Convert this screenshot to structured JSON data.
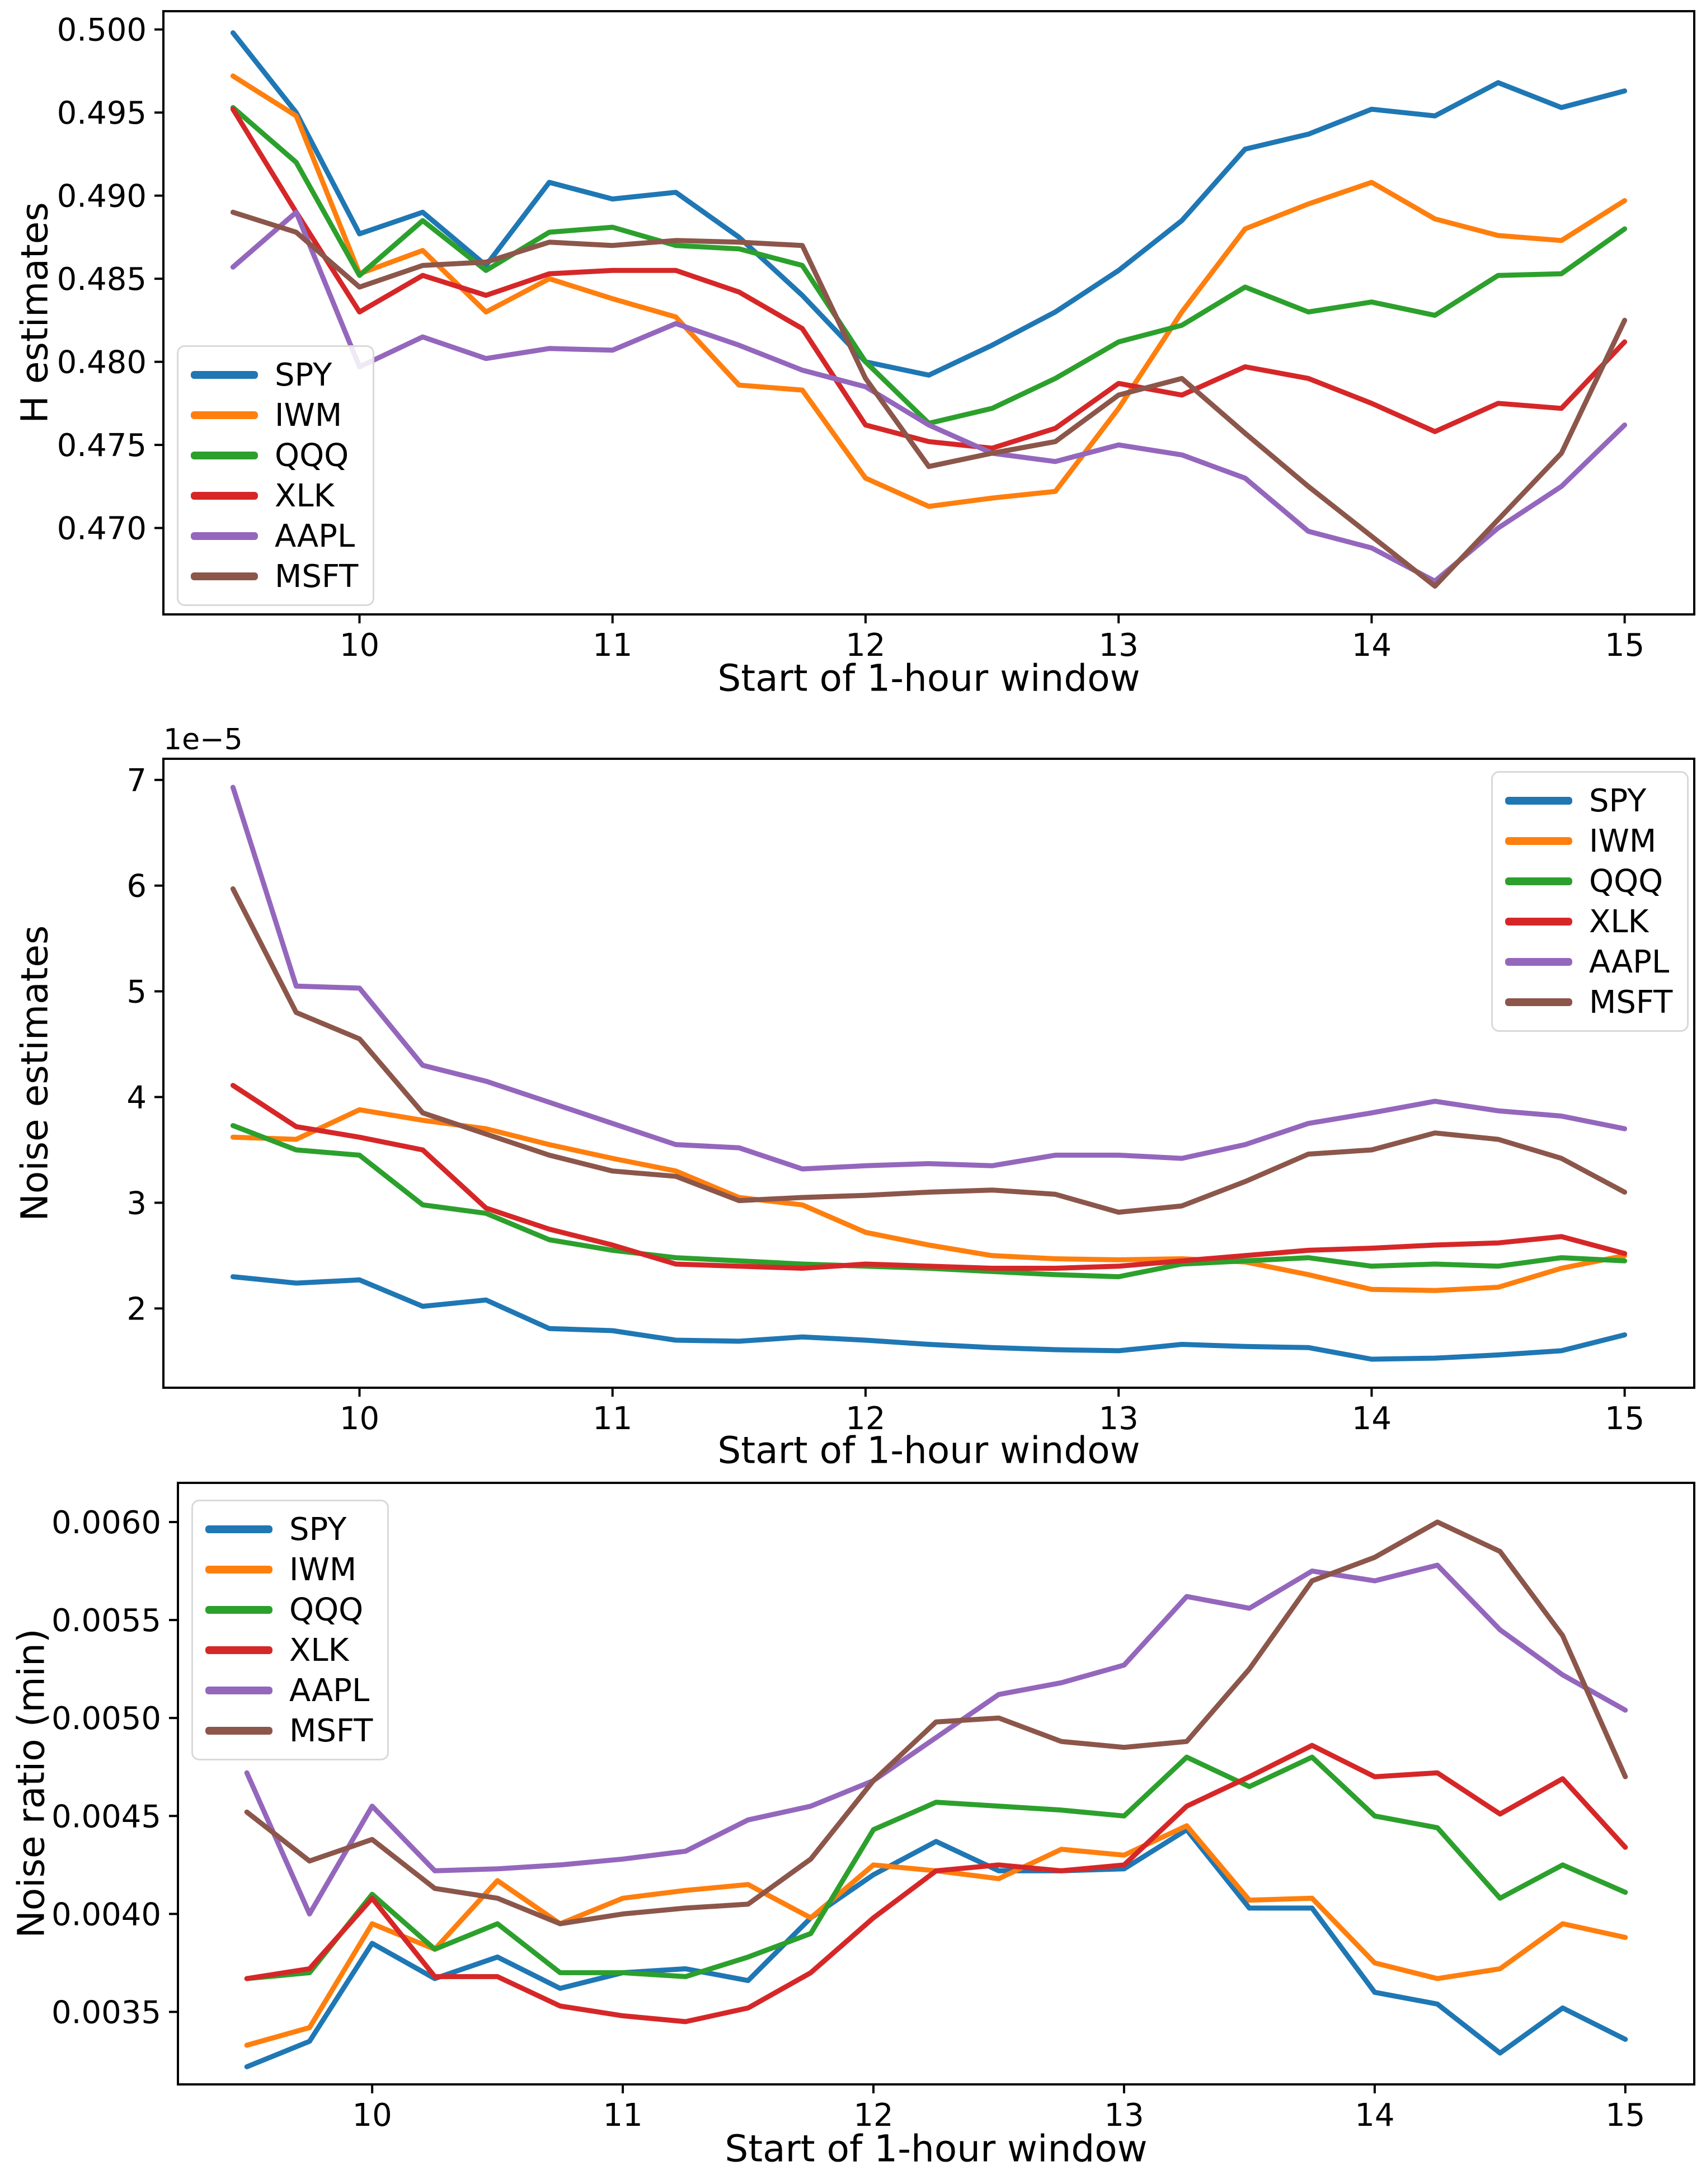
{
  "figure": {
    "background": "#ffffff",
    "text_color": "#000000",
    "series_colors": {
      "SPY": "#1f77b4",
      "IWM": "#ff7f0e",
      "QQQ": "#2ca02c",
      "XLK": "#d62728",
      "AAPL": "#9467bd",
      "MSFT": "#8c564b"
    }
  },
  "chart_data": [
    {
      "type": "line",
      "title": "",
      "xlabel": "Start of 1-hour window",
      "ylabel": "H estimates",
      "legend_position": "lower left inside",
      "grid": false,
      "xlim": [
        9.225,
        15.275
      ],
      "ylim": [
        0.4648,
        0.5011
      ],
      "xticks": [
        10,
        11,
        12,
        13,
        14,
        15
      ],
      "xticklabels": [
        "10",
        "11",
        "12",
        "13",
        "14",
        "15"
      ],
      "yticks": [
        0.5,
        0.495,
        0.49,
        0.485,
        0.48,
        0.475,
        0.47
      ],
      "yticklabels": [
        "0.500",
        "0.495",
        "0.490",
        "0.485",
        "0.480",
        "0.475",
        "0.470"
      ],
      "x": [
        9.5,
        9.75,
        10.0,
        10.25,
        10.5,
        10.75,
        11.0,
        11.25,
        11.5,
        11.75,
        12.0,
        12.25,
        12.5,
        12.75,
        13.0,
        13.25,
        13.5,
        13.75,
        14.0,
        14.25,
        14.5,
        14.75,
        15.0
      ],
      "series": [
        {
          "name": "SPY",
          "color": "#1f77b4",
          "values": [
            0.4998,
            0.495,
            0.4877,
            0.489,
            0.4858,
            0.4908,
            0.4898,
            0.4902,
            0.4875,
            0.484,
            0.48,
            0.4792,
            0.481,
            0.483,
            0.4855,
            0.4885,
            0.4928,
            0.4937,
            0.4952,
            0.4948,
            0.4968,
            0.4953,
            0.4963
          ]
        },
        {
          "name": "IWM",
          "color": "#ff7f0e",
          "values": [
            0.4972,
            0.4948,
            0.4853,
            0.4867,
            0.483,
            0.485,
            0.4838,
            0.4827,
            0.4786,
            0.4783,
            0.473,
            0.4713,
            0.4718,
            0.4722,
            0.4772,
            0.483,
            0.488,
            0.4895,
            0.4908,
            0.4886,
            0.4876,
            0.4873,
            0.4897
          ]
        },
        {
          "name": "QQQ",
          "color": "#2ca02c",
          "values": [
            0.4953,
            0.492,
            0.4852,
            0.4885,
            0.4855,
            0.4878,
            0.4881,
            0.487,
            0.4868,
            0.4858,
            0.48,
            0.4763,
            0.4772,
            0.479,
            0.4812,
            0.4822,
            0.4845,
            0.483,
            0.4836,
            0.4828,
            0.4852,
            0.4853,
            0.488
          ]
        },
        {
          "name": "XLK",
          "color": "#d62728",
          "values": [
            0.4952,
            0.489,
            0.483,
            0.4852,
            0.484,
            0.4853,
            0.4855,
            0.4855,
            0.4842,
            0.482,
            0.4762,
            0.4752,
            0.4748,
            0.476,
            0.4787,
            0.478,
            0.4797,
            0.479,
            0.4775,
            0.4758,
            0.4775,
            0.4772,
            0.4812
          ]
        },
        {
          "name": "AAPL",
          "color": "#9467bd",
          "values": [
            0.4857,
            0.489,
            0.4797,
            0.4815,
            0.4802,
            0.4808,
            0.4807,
            0.4823,
            0.481,
            0.4795,
            0.4785,
            0.4762,
            0.4745,
            0.474,
            0.475,
            0.4744,
            0.473,
            0.4698,
            0.4688,
            0.4668,
            0.47,
            0.4725,
            0.4762
          ]
        },
        {
          "name": "MSFT",
          "color": "#8c564b",
          "values": [
            0.489,
            0.4878,
            0.4845,
            0.4858,
            0.486,
            0.4872,
            0.487,
            0.4873,
            0.4872,
            0.487,
            0.479,
            0.4737,
            0.4745,
            0.4752,
            0.478,
            0.479,
            0.4757,
            0.4725,
            0.4695,
            0.4665,
            0.4705,
            0.4745,
            0.4825
          ]
        }
      ]
    },
    {
      "type": "line",
      "title": "",
      "xlabel": "Start of 1-hour window",
      "ylabel": "Noise estimates",
      "offset_text": "1e−5",
      "value_scale": "1e-5",
      "legend_position": "upper right inside",
      "grid": false,
      "xlim": [
        9.225,
        15.275
      ],
      "ylim": [
        1.25,
        7.2
      ],
      "xticks": [
        10,
        11,
        12,
        13,
        14,
        15
      ],
      "xticklabels": [
        "10",
        "11",
        "12",
        "13",
        "14",
        "15"
      ],
      "yticks": [
        7,
        6,
        5,
        4,
        3,
        2
      ],
      "yticklabels": [
        "7",
        "6",
        "5",
        "4",
        "3",
        "2"
      ],
      "x": [
        9.5,
        9.75,
        10.0,
        10.25,
        10.5,
        10.75,
        11.0,
        11.25,
        11.5,
        11.75,
        12.0,
        12.25,
        12.5,
        12.75,
        13.0,
        13.25,
        13.5,
        13.75,
        14.0,
        14.25,
        14.5,
        14.75,
        15.0
      ],
      "series": [
        {
          "name": "SPY",
          "color": "#1f77b4",
          "values": [
            2.3,
            2.24,
            2.27,
            2.02,
            2.08,
            1.81,
            1.79,
            1.7,
            1.69,
            1.73,
            1.7,
            1.66,
            1.63,
            1.61,
            1.6,
            1.66,
            1.64,
            1.63,
            1.52,
            1.53,
            1.56,
            1.6,
            1.75
          ]
        },
        {
          "name": "IWM",
          "color": "#ff7f0e",
          "values": [
            3.62,
            3.6,
            3.88,
            3.78,
            3.7,
            3.55,
            3.42,
            3.3,
            3.05,
            2.98,
            2.72,
            2.6,
            2.5,
            2.47,
            2.46,
            2.47,
            2.44,
            2.32,
            2.18,
            2.17,
            2.2,
            2.38,
            2.5
          ]
        },
        {
          "name": "QQQ",
          "color": "#2ca02c",
          "values": [
            3.73,
            3.5,
            3.45,
            2.98,
            2.9,
            2.65,
            2.55,
            2.48,
            2.45,
            2.42,
            2.4,
            2.38,
            2.35,
            2.32,
            2.3,
            2.42,
            2.45,
            2.48,
            2.4,
            2.42,
            2.4,
            2.48,
            2.45
          ]
        },
        {
          "name": "XLK",
          "color": "#d62728",
          "values": [
            4.11,
            3.72,
            3.62,
            3.5,
            2.95,
            2.75,
            2.6,
            2.42,
            2.4,
            2.38,
            2.42,
            2.4,
            2.38,
            2.38,
            2.4,
            2.45,
            2.5,
            2.55,
            2.57,
            2.6,
            2.62,
            2.68,
            2.52
          ]
        },
        {
          "name": "AAPL",
          "color": "#9467bd",
          "values": [
            6.93,
            5.05,
            5.03,
            4.3,
            4.15,
            3.95,
            3.75,
            3.55,
            3.52,
            3.32,
            3.35,
            3.37,
            3.35,
            3.45,
            3.45,
            3.42,
            3.55,
            3.75,
            3.85,
            3.96,
            3.87,
            3.82,
            3.7
          ]
        },
        {
          "name": "MSFT",
          "color": "#8c564b",
          "values": [
            5.97,
            4.8,
            4.55,
            3.85,
            3.65,
            3.45,
            3.3,
            3.25,
            3.02,
            3.05,
            3.07,
            3.1,
            3.12,
            3.08,
            2.91,
            2.97,
            3.2,
            3.46,
            3.5,
            3.66,
            3.6,
            3.42,
            3.1
          ]
        }
      ]
    },
    {
      "type": "line",
      "title": "",
      "xlabel": "Start of 1-hour window",
      "ylabel": "Noise ratio (min)",
      "legend_position": "upper left inside",
      "grid": false,
      "xlim": [
        9.225,
        15.275
      ],
      "ylim": [
        0.00313,
        0.0062
      ],
      "xticks": [
        10,
        11,
        12,
        13,
        14,
        15
      ],
      "xticklabels": [
        "10",
        "11",
        "12",
        "13",
        "14",
        "15"
      ],
      "yticks": [
        0.006,
        0.0055,
        0.005,
        0.0045,
        0.004,
        0.0035
      ],
      "yticklabels": [
        "0.0060",
        "0.0055",
        "0.0050",
        "0.0045",
        "0.0040",
        "0.0035"
      ],
      "x": [
        9.5,
        9.75,
        10.0,
        10.25,
        10.5,
        10.75,
        11.0,
        11.25,
        11.5,
        11.75,
        12.0,
        12.25,
        12.5,
        12.75,
        13.0,
        13.25,
        13.5,
        13.75,
        14.0,
        14.25,
        14.5,
        14.75,
        15.0
      ],
      "series": [
        {
          "name": "SPY",
          "color": "#1f77b4",
          "values": [
            0.00322,
            0.00335,
            0.00385,
            0.00367,
            0.00378,
            0.00362,
            0.0037,
            0.00372,
            0.00366,
            0.00398,
            0.0042,
            0.00437,
            0.00422,
            0.00422,
            0.00423,
            0.00443,
            0.00403,
            0.00403,
            0.0036,
            0.00354,
            0.00329,
            0.00352,
            0.00336
          ]
        },
        {
          "name": "IWM",
          "color": "#ff7f0e",
          "values": [
            0.00333,
            0.00342,
            0.00395,
            0.00382,
            0.00417,
            0.00395,
            0.00408,
            0.00412,
            0.00415,
            0.00398,
            0.00425,
            0.00422,
            0.00418,
            0.00433,
            0.0043,
            0.00445,
            0.00407,
            0.00408,
            0.00375,
            0.00367,
            0.00372,
            0.00395,
            0.00388
          ]
        },
        {
          "name": "QQQ",
          "color": "#2ca02c",
          "values": [
            0.00367,
            0.0037,
            0.0041,
            0.00382,
            0.00395,
            0.0037,
            0.0037,
            0.00368,
            0.00378,
            0.0039,
            0.00443,
            0.00457,
            0.00455,
            0.00453,
            0.0045,
            0.0048,
            0.00465,
            0.0048,
            0.0045,
            0.00444,
            0.00408,
            0.00425,
            0.00411
          ]
        },
        {
          "name": "XLK",
          "color": "#d62728",
          "values": [
            0.00367,
            0.00372,
            0.00408,
            0.00368,
            0.00368,
            0.00353,
            0.00348,
            0.00345,
            0.00352,
            0.0037,
            0.00398,
            0.00422,
            0.00425,
            0.00422,
            0.00425,
            0.00455,
            0.0047,
            0.00486,
            0.0047,
            0.00472,
            0.00451,
            0.00469,
            0.00434
          ]
        },
        {
          "name": "AAPL",
          "color": "#9467bd",
          "values": [
            0.00472,
            0.004,
            0.00455,
            0.00422,
            0.00423,
            0.00425,
            0.00428,
            0.00432,
            0.00448,
            0.00455,
            0.00468,
            0.0049,
            0.00512,
            0.00518,
            0.00527,
            0.00562,
            0.00556,
            0.00575,
            0.0057,
            0.00578,
            0.00545,
            0.00522,
            0.00504
          ]
        },
        {
          "name": "MSFT",
          "color": "#8c564b",
          "values": [
            0.00452,
            0.00427,
            0.00438,
            0.00413,
            0.00408,
            0.00395,
            0.004,
            0.00403,
            0.00405,
            0.00428,
            0.00468,
            0.00498,
            0.005,
            0.00488,
            0.00485,
            0.00488,
            0.00525,
            0.0057,
            0.00582,
            0.006,
            0.00585,
            0.00542,
            0.0047
          ]
        }
      ]
    }
  ]
}
